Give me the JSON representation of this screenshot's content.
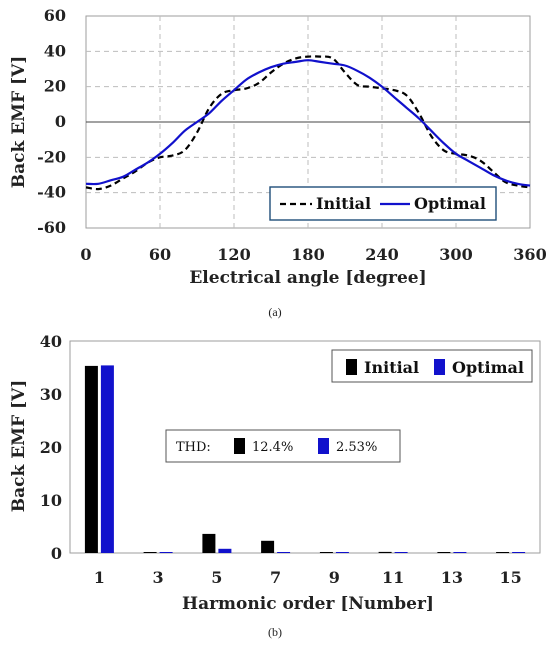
{
  "colors": {
    "initial": "#000000",
    "optimal": "#1111cc",
    "grid": "#bdbdbd",
    "legend_border_a": "#1f4e79"
  },
  "chart_data": [
    {
      "type": "line",
      "caption": "(a)",
      "title": "",
      "xlabel": "Electrical angle [degree]",
      "ylabel": "Back EMF [V]",
      "xlim": [
        0,
        360
      ],
      "ylim": [
        -60,
        60
      ],
      "xticks": [
        0,
        60,
        120,
        180,
        240,
        300,
        360
      ],
      "yticks": [
        -60,
        -40,
        -20,
        0,
        20,
        40,
        60
      ],
      "grid": "dashed",
      "legend_position": "bottom-right",
      "series": [
        {
          "name": "Initial",
          "style": "dashed",
          "x": [
            0,
            10,
            20,
            30,
            40,
            50,
            60,
            70,
            80,
            90,
            100,
            110,
            120,
            130,
            140,
            150,
            160,
            170,
            180,
            190,
            200,
            210,
            220,
            230,
            240,
            250,
            260,
            270,
            280,
            290,
            300,
            310,
            320,
            330,
            340,
            350,
            360
          ],
          "y": [
            -37,
            -38,
            -36,
            -32,
            -28,
            -23,
            -20,
            -19,
            -16,
            -6,
            8,
            16,
            18,
            19,
            22,
            28,
            33,
            36,
            37,
            37,
            36,
            28,
            21,
            20,
            19,
            18,
            15,
            5,
            -8,
            -16,
            -18,
            -19,
            -22,
            -28,
            -34,
            -36,
            -37
          ]
        },
        {
          "name": "Optimal",
          "style": "solid",
          "x": [
            0,
            10,
            20,
            30,
            40,
            50,
            60,
            70,
            80,
            90,
            100,
            110,
            120,
            130,
            140,
            150,
            160,
            170,
            180,
            190,
            200,
            210,
            220,
            230,
            240,
            250,
            260,
            270,
            280,
            290,
            300,
            310,
            320,
            330,
            340,
            350,
            360
          ],
          "y": [
            -35,
            -35,
            -33,
            -31,
            -27,
            -23,
            -18,
            -12,
            -5,
            0,
            5,
            12,
            18,
            24,
            28,
            31,
            33,
            34,
            35,
            34,
            33,
            32,
            29,
            25,
            20,
            14,
            8,
            2,
            -5,
            -12,
            -18,
            -22,
            -26,
            -30,
            -33,
            -35,
            -36
          ]
        }
      ]
    },
    {
      "type": "bar",
      "caption": "(b)",
      "title": "",
      "xlabel": "Harmonic order [Number]",
      "ylabel": "Back EMF [V]",
      "categories": [
        "1",
        "3",
        "5",
        "7",
        "9",
        "11",
        "13",
        "15"
      ],
      "ylim": [
        0,
        40
      ],
      "yticks": [
        0,
        10,
        20,
        30,
        40
      ],
      "grid": "none",
      "legend_position": "top-right",
      "series": [
        {
          "name": "Initial",
          "values": [
            35.3,
            0.05,
            3.6,
            2.3,
            0.05,
            0.2,
            0.05,
            0.05
          ]
        },
        {
          "name": "Optimal",
          "values": [
            35.4,
            0.1,
            0.8,
            0.15,
            0.05,
            0.05,
            0.05,
            0.05
          ]
        }
      ],
      "thd": {
        "label": "THD:",
        "initial": "12.4%",
        "optimal": "2.53%"
      }
    }
  ]
}
